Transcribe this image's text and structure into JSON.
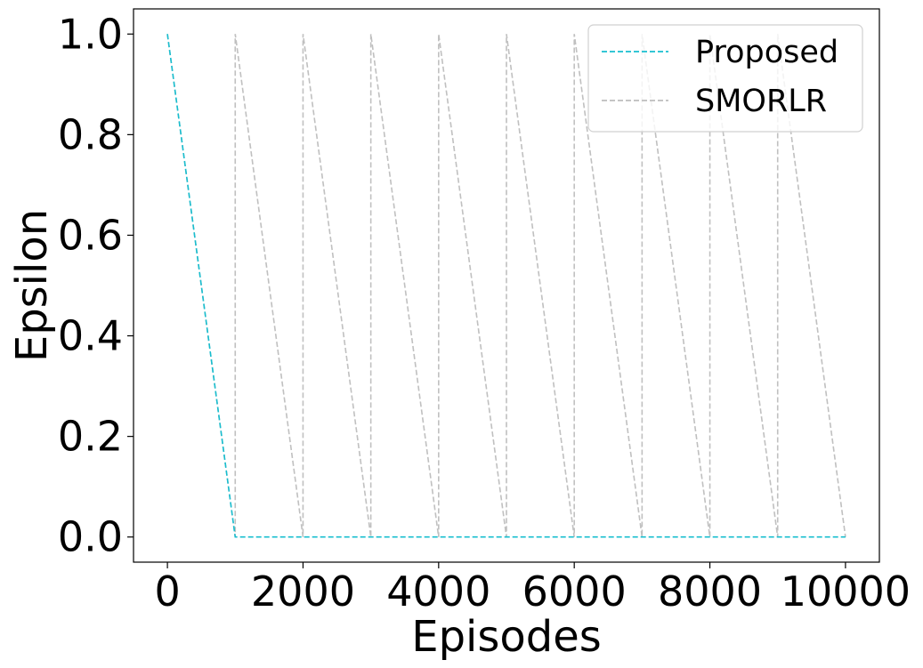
{
  "chart_data": {
    "type": "line",
    "title": "",
    "xlabel": "Episodes",
    "ylabel": "Epsilon",
    "xlim": [
      -500,
      10500
    ],
    "ylim": [
      -0.05,
      1.05
    ],
    "x_ticks": [
      0,
      2000,
      4000,
      6000,
      8000,
      10000
    ],
    "x_tick_labels": [
      "0",
      "2000",
      "4000",
      "6000",
      "8000",
      "10000"
    ],
    "y_ticks": [
      0.0,
      0.2,
      0.4,
      0.6,
      0.8,
      1.0
    ],
    "y_tick_labels": [
      "0.0",
      "0.2",
      "0.4",
      "0.6",
      "0.8",
      "1.0"
    ],
    "grid": false,
    "legend_position": "top-right",
    "series": [
      {
        "name": "Proposed",
        "color": "#17becf",
        "dash": "dashed",
        "x": [
          0,
          1000,
          10000
        ],
        "y": [
          1.0,
          0.0,
          0.0
        ]
      },
      {
        "name": "SMORLR",
        "color": "#bdbdbd",
        "dash": "dashed",
        "x": [
          0,
          1000,
          1000,
          2000,
          2000,
          3000,
          3000,
          4000,
          4000,
          5000,
          5000,
          6000,
          6000,
          7000,
          7000,
          8000,
          8000,
          9000,
          9000,
          10000
        ],
        "y": [
          1.0,
          0.0,
          1.0,
          0.0,
          1.0,
          0.0,
          1.0,
          0.0,
          1.0,
          0.0,
          1.0,
          0.0,
          1.0,
          0.0,
          1.0,
          0.0,
          1.0,
          0.0,
          1.0,
          0.0
        ]
      }
    ]
  }
}
